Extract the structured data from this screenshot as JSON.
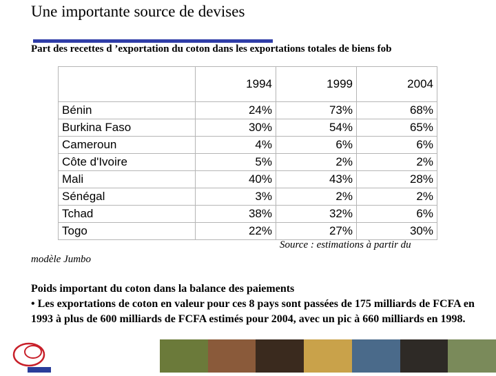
{
  "title": "Une importante source de devises",
  "subtitle": "Part des recettes d ’exportation du coton dans les exportations totales de biens fob",
  "table": {
    "headers": [
      "",
      "1994",
      "1999",
      "2004"
    ],
    "rows": [
      {
        "country": "Bénin",
        "v1994": "24%",
        "v1999": "73%",
        "v2004": "68%"
      },
      {
        "country": "Burkina Faso",
        "v1994": "30%",
        "v1999": "54%",
        "v2004": "65%"
      },
      {
        "country": "Cameroun",
        "v1994": "4%",
        "v1999": "6%",
        "v2004": "6%"
      },
      {
        "country": "Côte d'Ivoire",
        "v1994": "5%",
        "v1999": "2%",
        "v2004": "2%"
      },
      {
        "country": "Mali",
        "v1994": "40%",
        "v1999": "43%",
        "v2004": "28%"
      },
      {
        "country": "Sénégal",
        "v1994": "3%",
        "v1999": "2%",
        "v2004": "2%"
      },
      {
        "country": "Tchad",
        "v1994": "38%",
        "v1999": "32%",
        "v2004": "6%"
      },
      {
        "country": "Togo",
        "v1994": "22%",
        "v1999": "27%",
        "v2004": "30%"
      }
    ]
  },
  "source_line1": "Source : estimations à partir du",
  "source_line2": "modèle Jumbo",
  "body": {
    "heading": "Poids important du coton dans la balance des paiements",
    "bullet": "• Les exportations de coton en valeur pour ces 8 pays sont passées de 175 milliards de FCFA en 1993 à plus de 600 milliards de FCFA estimés pour 2004, avec un pic à 660 milliards en 1998."
  },
  "colors": {
    "title_rule": "#2f3da8",
    "logo_red": "#c8202a",
    "logo_blue": "#2a3d9a"
  },
  "photo_strip_colors": [
    "#6b7a3a",
    "#8a5a3a",
    "#3a2a1e",
    "#c9a24a",
    "#4a6a8a",
    "#2e2a26",
    "#7a8a5a"
  ]
}
